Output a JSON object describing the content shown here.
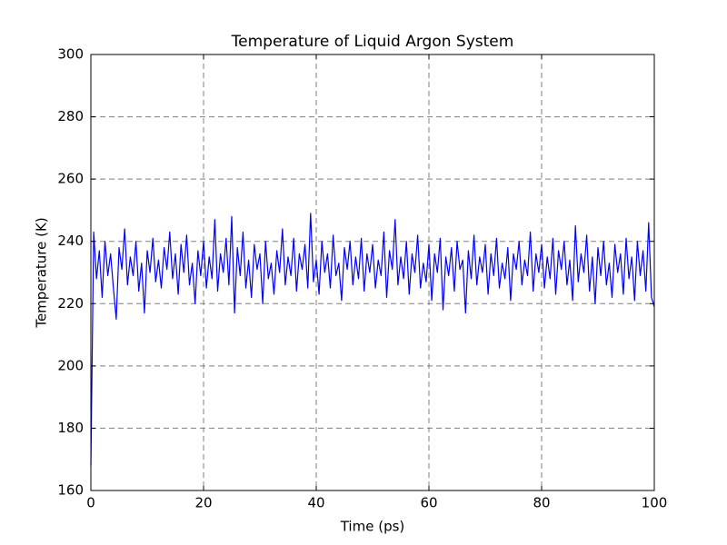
{
  "chart_data": {
    "type": "line",
    "title": "Temperature of Liquid Argon System",
    "xlabel": "Time (ps)",
    "ylabel": "Temperature (K)",
    "xlim": [
      0,
      100
    ],
    "xticks": [
      0,
      20,
      40,
      60,
      80,
      100
    ],
    "ylim": [
      160,
      300
    ],
    "yticks": [
      160,
      180,
      200,
      220,
      240,
      260,
      280,
      300
    ],
    "grid": true,
    "x": [
      0,
      0.5,
      1,
      1.5,
      2,
      2.5,
      3,
      3.5,
      4,
      4.5,
      5,
      5.5,
      6,
      6.5,
      7,
      7.5,
      8,
      8.5,
      9,
      9.5,
      10,
      10.5,
      11,
      11.5,
      12,
      12.5,
      13,
      13.5,
      14,
      14.5,
      15,
      15.5,
      16,
      16.5,
      17,
      17.5,
      18,
      18.5,
      19,
      19.5,
      20,
      20.5,
      21,
      21.5,
      22,
      22.5,
      23,
      23.5,
      24,
      24.5,
      25,
      25.5,
      26,
      26.5,
      27,
      27.5,
      28,
      28.5,
      29,
      29.5,
      30,
      30.5,
      31,
      31.5,
      32,
      32.5,
      33,
      33.5,
      34,
      34.5,
      35,
      35.5,
      36,
      36.5,
      37,
      37.5,
      38,
      38.5,
      39,
      39.5,
      40,
      40.5,
      41,
      41.5,
      42,
      42.5,
      43,
      43.5,
      44,
      44.5,
      45,
      45.5,
      46,
      46.5,
      47,
      47.5,
      48,
      48.5,
      49,
      49.5,
      50,
      50.5,
      51,
      51.5,
      52,
      52.5,
      53,
      53.5,
      54,
      54.5,
      55,
      55.5,
      56,
      56.5,
      57,
      57.5,
      58,
      58.5,
      59,
      59.5,
      60,
      60.5,
      61,
      61.5,
      62,
      62.5,
      63,
      63.5,
      64,
      64.5,
      65,
      65.5,
      66,
      66.5,
      67,
      67.5,
      68,
      68.5,
      69,
      69.5,
      70,
      70.5,
      71,
      71.5,
      72,
      72.5,
      73,
      73.5,
      74,
      74.5,
      75,
      75.5,
      76,
      76.5,
      77,
      77.5,
      78,
      78.5,
      79,
      79.5,
      80,
      80.5,
      81,
      81.5,
      82,
      82.5,
      83,
      83.5,
      84,
      84.5,
      85,
      85.5,
      86,
      86.5,
      87,
      87.5,
      88,
      88.5,
      89,
      89.5,
      90,
      90.5,
      91,
      91.5,
      92,
      92.5,
      93,
      93.5,
      94,
      94.5,
      95,
      95.5,
      96,
      96.5,
      97,
      97.5,
      98,
      98.5,
      99,
      99.5,
      100
    ],
    "series": [
      {
        "color": "#0000ff",
        "values": [
          168,
          243,
          228,
          237,
          222,
          240,
          229,
          236,
          225,
          215,
          238,
          231,
          244,
          226,
          235,
          229,
          240,
          224,
          233,
          217,
          237,
          230,
          241,
          227,
          234,
          225,
          238,
          231,
          243,
          228,
          236,
          223,
          239,
          230,
          242,
          226,
          233,
          220,
          237,
          229,
          240,
          225,
          235,
          228,
          247,
          224,
          236,
          230,
          241,
          226,
          248,
          217,
          238,
          229,
          243,
          225,
          234,
          222,
          239,
          231,
          236,
          220,
          240,
          228,
          233,
          223,
          237,
          230,
          244,
          226,
          235,
          229,
          241,
          224,
          236,
          231,
          239,
          225,
          249,
          227,
          234,
          223,
          240,
          230,
          236,
          225,
          242,
          229,
          233,
          221,
          238,
          231,
          240,
          226,
          235,
          228,
          241,
          224,
          236,
          230,
          239,
          225,
          234,
          229,
          243,
          222,
          237,
          231,
          247,
          226,
          235,
          228,
          240,
          223,
          236,
          230,
          242,
          225,
          233,
          227,
          239,
          221,
          236,
          230,
          241,
          218,
          235,
          229,
          238,
          224,
          240,
          231,
          234,
          217,
          237,
          228,
          242,
          226,
          235,
          230,
          239,
          223,
          236,
          229,
          241,
          225,
          233,
          228,
          238,
          221,
          236,
          231,
          240,
          226,
          234,
          229,
          243,
          224,
          236,
          230,
          239,
          225,
          235,
          228,
          241,
          223,
          237,
          231,
          240,
          226,
          234,
          221,
          245,
          227,
          236,
          230,
          242,
          224,
          235,
          220,
          238,
          229,
          240,
          226,
          233,
          222,
          239,
          230,
          236,
          223,
          241,
          228,
          235,
          221,
          240,
          229,
          237,
          224,
          246,
          222,
          219
        ]
      }
    ]
  }
}
